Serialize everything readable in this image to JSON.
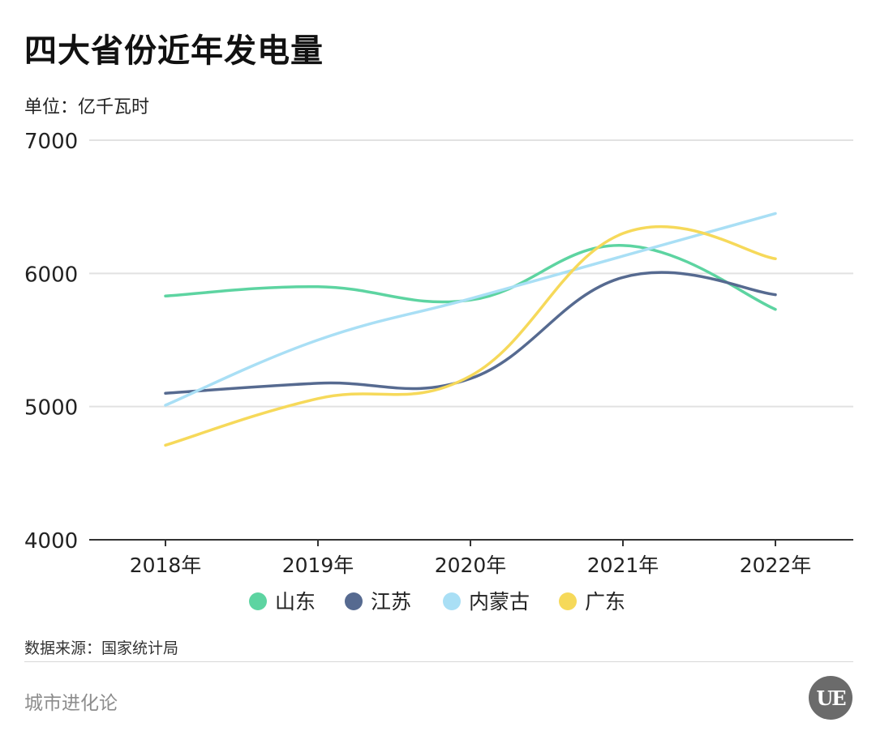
{
  "header": {
    "title": "四大省份近年发电量",
    "unit": "单位：亿千瓦时"
  },
  "footer": {
    "source": "数据来源：国家统计局",
    "brand": "城市进化论",
    "logo_text": "UE"
  },
  "colors": {
    "山东": "#5dd4a1",
    "江苏": "#566a90",
    "内蒙古": "#a9dff5",
    "广东": "#f6d95a",
    "grid": "#e2e2e2",
    "axis": "#333333"
  },
  "chart_data": {
    "type": "line",
    "title": "四大省份近年发电量",
    "xlabel": "",
    "ylabel": "单位：亿千瓦时",
    "categories": [
      "2018年",
      "2019年",
      "2020年",
      "2021年",
      "2022年"
    ],
    "ylim": [
      4000,
      7000
    ],
    "yticks": [
      4000,
      5000,
      6000,
      7000
    ],
    "grid": true,
    "legend_position": "bottom",
    "series": [
      {
        "name": "山东",
        "values": [
          5830,
          5900,
          5800,
          6210,
          5730
        ]
      },
      {
        "name": "江苏",
        "values": [
          5100,
          5175,
          5210,
          5970,
          5840
        ]
      },
      {
        "name": "内蒙古",
        "values": [
          5010,
          5500,
          5810,
          6130,
          6450
        ]
      },
      {
        "name": "广东",
        "values": [
          4710,
          5060,
          5230,
          6300,
          6110
        ]
      }
    ]
  }
}
